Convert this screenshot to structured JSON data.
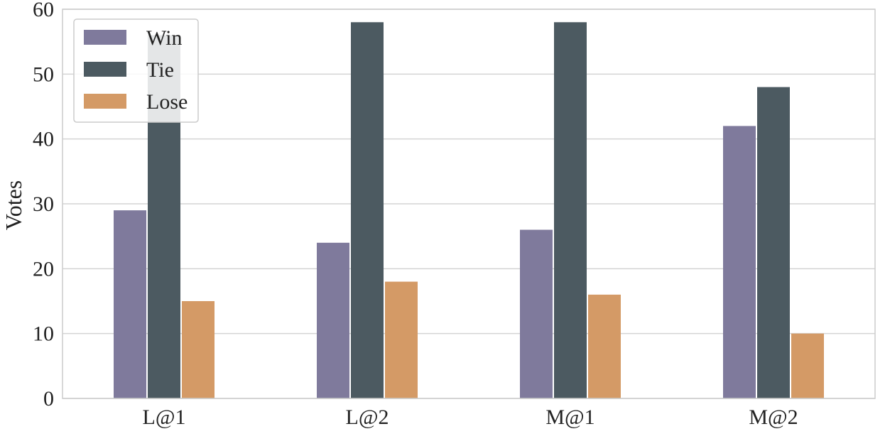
{
  "chart_data": {
    "type": "bar",
    "title": "",
    "xlabel": "",
    "ylabel": "Votes",
    "ylim": [
      0,
      60
    ],
    "yticks": [
      0,
      10,
      20,
      30,
      40,
      50,
      60
    ],
    "categories": [
      "L@1",
      "L@2",
      "M@1",
      "M@2"
    ],
    "series": [
      {
        "name": "Win",
        "values": [
          29,
          24,
          26,
          42
        ],
        "color": "#7f7a9c"
      },
      {
        "name": "Tie",
        "values": [
          56,
          58,
          58,
          48
        ],
        "color": "#4c5a61"
      },
      {
        "name": "Lose",
        "values": [
          15,
          18,
          16,
          10
        ],
        "color": "#d49a66"
      }
    ],
    "grid": true,
    "legend_position": "top-left"
  }
}
